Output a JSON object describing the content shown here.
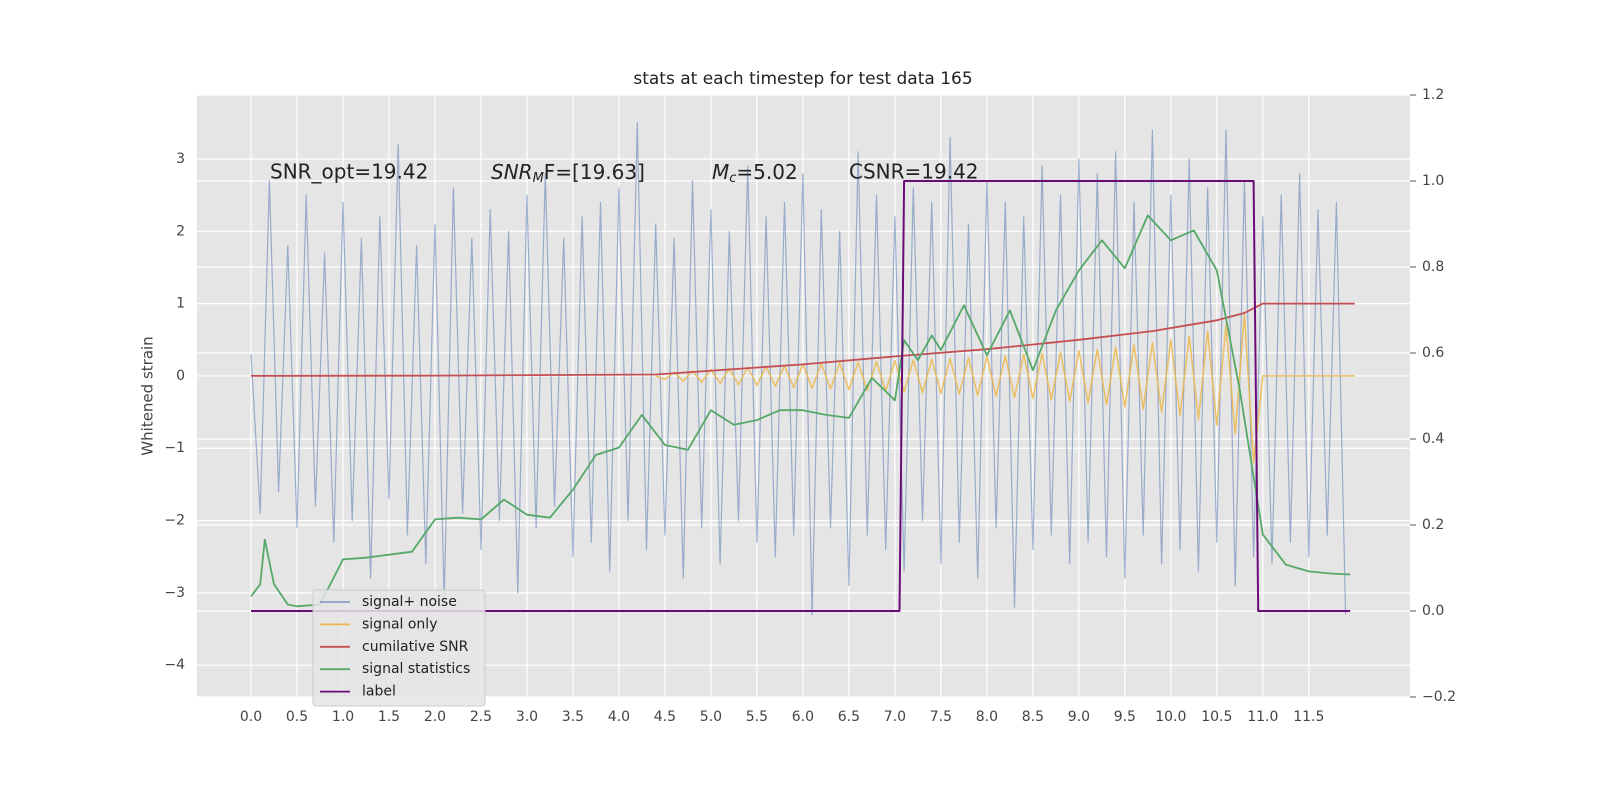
{
  "chart_data": {
    "type": "line",
    "title": "stats at each timestep for test data 165",
    "ylabel": "Whitened strain",
    "annotations": [
      "SNR_opt=19.42",
      {
        "base": "SNR",
        "sub": "M",
        "tail": "F=[19.63]"
      },
      {
        "base": "M",
        "sub": "c",
        "tail": "=5.02"
      },
      "CSNR=19.42"
    ],
    "xlim": [
      -0.587,
      12.6
    ],
    "ylim": [
      -4.44,
      3.885
    ],
    "y2lim": [
      -0.2,
      1.2
    ],
    "grid": true,
    "legend": "lower left",
    "xticks": [
      {
        "value": 0,
        "label": "0.0"
      },
      0.5,
      {
        "value": 1,
        "label": "1.0"
      },
      1.5,
      {
        "value": 2,
        "label": "2.0"
      },
      2.5,
      {
        "value": 3,
        "label": "3.0"
      },
      3.5,
      {
        "value": 4,
        "label": "4.0"
      },
      4.5,
      {
        "value": 5,
        "label": "5.0"
      },
      5.5,
      {
        "value": 6,
        "label": "6.0"
      },
      6.5,
      {
        "value": 7,
        "label": "7.0"
      },
      7.5,
      {
        "value": 8,
        "label": "8.0"
      },
      8.5,
      {
        "value": 9,
        "label": "9.0"
      },
      9.5,
      {
        "value": 10,
        "label": "10.0"
      },
      10.5,
      {
        "value": 11,
        "label": "11.0"
      },
      11.5
    ],
    "yticks": [
      {
        "value": -4,
        "label": "−4"
      },
      {
        "value": -3,
        "label": "−3"
      },
      {
        "value": -2,
        "label": "−2"
      },
      {
        "value": -1,
        "label": "−1"
      },
      0,
      1,
      2,
      3
    ],
    "y2ticks": [
      {
        "value": -0.2,
        "label": "−0.2"
      },
      {
        "value": 0,
        "label": "0.0"
      },
      0.2,
      0.4,
      0.6,
      0.8,
      {
        "value": 1,
        "label": "1.0"
      },
      {
        "value": 1.2,
        "label": "1.2"
      }
    ],
    "series": [
      {
        "name": "signal+ noise",
        "color": "#4c72b0",
        "x": [
          0,
          0.1,
          0.2,
          0.3,
          0.4,
          0.5,
          0.6,
          0.7,
          0.8,
          0.9,
          1,
          1.1,
          1.2,
          1.3,
          1.4,
          1.5,
          1.6,
          1.7,
          1.8,
          1.9,
          2,
          2.1,
          2.2,
          2.3,
          2.4,
          2.5,
          2.6,
          2.7,
          2.8,
          2.9,
          3,
          3.1,
          3.2,
          3.3,
          3.4,
          3.5,
          3.6,
          3.7,
          3.8,
          3.9,
          4,
          4.1,
          4.2,
          4.3,
          4.4,
          4.5,
          4.6,
          4.7,
          4.8,
          4.9,
          5,
          5.1,
          5.2,
          5.3,
          5.4,
          5.5,
          5.6,
          5.7,
          5.8,
          5.9,
          6,
          6.1,
          6.2,
          6.3,
          6.4,
          6.5,
          6.6,
          6.7,
          6.8,
          6.9,
          7,
          7.1,
          7.2,
          7.3,
          7.4,
          7.5,
          7.6,
          7.7,
          7.8,
          7.9,
          8,
          8.1,
          8.2,
          8.3,
          8.4,
          8.5,
          8.6,
          8.7,
          8.8,
          8.9,
          9,
          9.1,
          9.2,
          9.3,
          9.4,
          9.5,
          9.6,
          9.7,
          9.8,
          9.9,
          10,
          10.1,
          10.2,
          10.3,
          10.4,
          10.5,
          10.6,
          10.7,
          10.8,
          10.9,
          11,
          11.1,
          11.2,
          11.3,
          11.4,
          11.5,
          11.6,
          11.7,
          11.8,
          11.9
        ],
        "values": [
          0.3,
          -1.9,
          2.7,
          -1.6,
          1.8,
          -2.1,
          2.5,
          -1.8,
          1.7,
          -2.3,
          2.4,
          -2.0,
          1.9,
          -2.8,
          2.2,
          -1.7,
          3.2,
          -2.2,
          1.8,
          -2.6,
          2.1,
          -3.1,
          2.6,
          -1.9,
          1.9,
          -2.4,
          2.3,
          -2.0,
          2.0,
          -3.0,
          2.5,
          -2.1,
          2.8,
          -1.8,
          1.9,
          -2.5,
          2.2,
          -2.3,
          2.4,
          -2.7,
          2.6,
          -2.0,
          3.5,
          -2.4,
          2.1,
          -2.2,
          1.9,
          -2.8,
          2.7,
          -2.1,
          2.3,
          -2.6,
          2.0,
          -2.0,
          2.9,
          -2.3,
          2.2,
          -2.5,
          2.4,
          -2.2,
          2.8,
          -3.3,
          2.3,
          -2.1,
          2.0,
          -2.9,
          3.1,
          -2.2,
          2.5,
          -2.4,
          2.2,
          -2.7,
          2.6,
          -2.0,
          2.4,
          -2.6,
          3.3,
          -2.3,
          2.1,
          -2.8,
          2.7,
          -2.1,
          2.4,
          -3.2,
          2.2,
          -2.4,
          2.9,
          -2.2,
          2.5,
          -2.6,
          3.0,
          -2.3,
          2.8,
          -2.5,
          3.1,
          -2.8,
          2.4,
          -2.2,
          3.4,
          -2.6,
          2.5,
          -2.4,
          3.0,
          -2.7,
          2.6,
          -2.3,
          3.4,
          -2.9,
          2.7,
          -2.5,
          2.2,
          -2.6,
          2.5,
          -2.3,
          2.8,
          -2.5,
          2.3,
          -2.2,
          2.4,
          -3.3
        ]
      },
      {
        "name": "signal only",
        "color": "#ecb84a",
        "x": [
          4.4,
          4.5,
          4.6,
          4.7,
          4.8,
          4.9,
          5,
          5.1,
          5.2,
          5.3,
          5.4,
          5.5,
          5.6,
          5.7,
          5.8,
          5.9,
          6,
          6.1,
          6.2,
          6.3,
          6.4,
          6.5,
          6.6,
          6.7,
          6.8,
          6.9,
          7,
          7.1,
          7.2,
          7.3,
          7.4,
          7.5,
          7.6,
          7.7,
          7.8,
          7.9,
          8,
          8.1,
          8.2,
          8.3,
          8.4,
          8.5,
          8.6,
          8.7,
          8.8,
          8.9,
          9,
          9.1,
          9.2,
          9.3,
          9.4,
          9.5,
          9.6,
          9.7,
          9.8,
          9.9,
          10,
          10.1,
          10.2,
          10.3,
          10.4,
          10.5,
          10.6,
          10.7,
          10.8,
          10.9,
          11,
          12
        ],
        "values": [
          0,
          -0.05,
          0.05,
          -0.07,
          0.07,
          -0.09,
          0.09,
          -0.1,
          0.1,
          -0.12,
          0.12,
          -0.13,
          0.13,
          -0.14,
          0.14,
          -0.16,
          0.16,
          -0.17,
          0.17,
          -0.18,
          0.18,
          -0.19,
          0.19,
          -0.2,
          0.2,
          -0.21,
          0.21,
          -0.22,
          0.22,
          -0.23,
          0.23,
          -0.24,
          0.24,
          -0.25,
          0.25,
          -0.27,
          0.27,
          -0.28,
          0.28,
          -0.3,
          0.3,
          -0.31,
          0.31,
          -0.33,
          0.33,
          -0.35,
          0.35,
          -0.37,
          0.37,
          -0.4,
          0.4,
          -0.43,
          0.43,
          -0.46,
          0.46,
          -0.5,
          0.5,
          -0.55,
          0.55,
          -0.6,
          0.62,
          -0.68,
          0.7,
          -0.8,
          0.85,
          -1.2,
          0,
          0
        ]
      },
      {
        "name": "cumilative SNR",
        "color": "#c44e52",
        "x": [
          0,
          2,
          4.4,
          6,
          7,
          8,
          9,
          9.8,
          10.5,
          10.8,
          11,
          12
        ],
        "values": [
          0,
          0.005,
          0.02,
          0.16,
          0.27,
          0.37,
          0.5,
          0.62,
          0.77,
          0.87,
          1.0,
          1.0
        ]
      },
      {
        "name": "signal statistics",
        "color": "#55a868",
        "axis": "y2",
        "x": [
          0,
          0.1,
          0.15,
          0.25,
          0.4,
          0.5,
          0.75,
          1,
          1.25,
          1.5,
          1.75,
          2,
          2.25,
          2.5,
          2.75,
          3,
          3.25,
          3.5,
          3.75,
          4,
          4.25,
          4.5,
          4.75,
          5,
          5.25,
          5.5,
          5.75,
          6,
          6.25,
          6.5,
          6.75,
          7,
          7.1,
          7.25,
          7.4,
          7.5,
          7.75,
          8,
          8.25,
          8.5,
          8.75,
          9,
          9.25,
          9.5,
          9.75,
          10,
          10.25,
          10.5,
          10.75,
          11,
          11.25,
          11.5,
          11.75,
          11.95
        ],
        "values": [
          0.034,
          0.062,
          0.166,
          0.062,
          0.015,
          0.011,
          0.015,
          0.12,
          0.124,
          0.131,
          0.138,
          0.213,
          0.217,
          0.213,
          0.259,
          0.224,
          0.217,
          0.282,
          0.363,
          0.38,
          0.456,
          0.386,
          0.375,
          0.467,
          0.433,
          0.444,
          0.467,
          0.467,
          0.456,
          0.449,
          0.542,
          0.49,
          0.63,
          0.583,
          0.641,
          0.607,
          0.711,
          0.595,
          0.699,
          0.56,
          0.699,
          0.792,
          0.862,
          0.797,
          0.92,
          0.862,
          0.885,
          0.792,
          0.514,
          0.178,
          0.108,
          0.092,
          0.087,
          0.085
        ]
      },
      {
        "name": "label",
        "color": "#6a0c78",
        "axis": "y2",
        "x": [
          0,
          7.05,
          7.1,
          10.9,
          10.95,
          11.95
        ],
        "values": [
          0,
          0,
          1,
          1,
          0,
          0
        ]
      }
    ]
  }
}
